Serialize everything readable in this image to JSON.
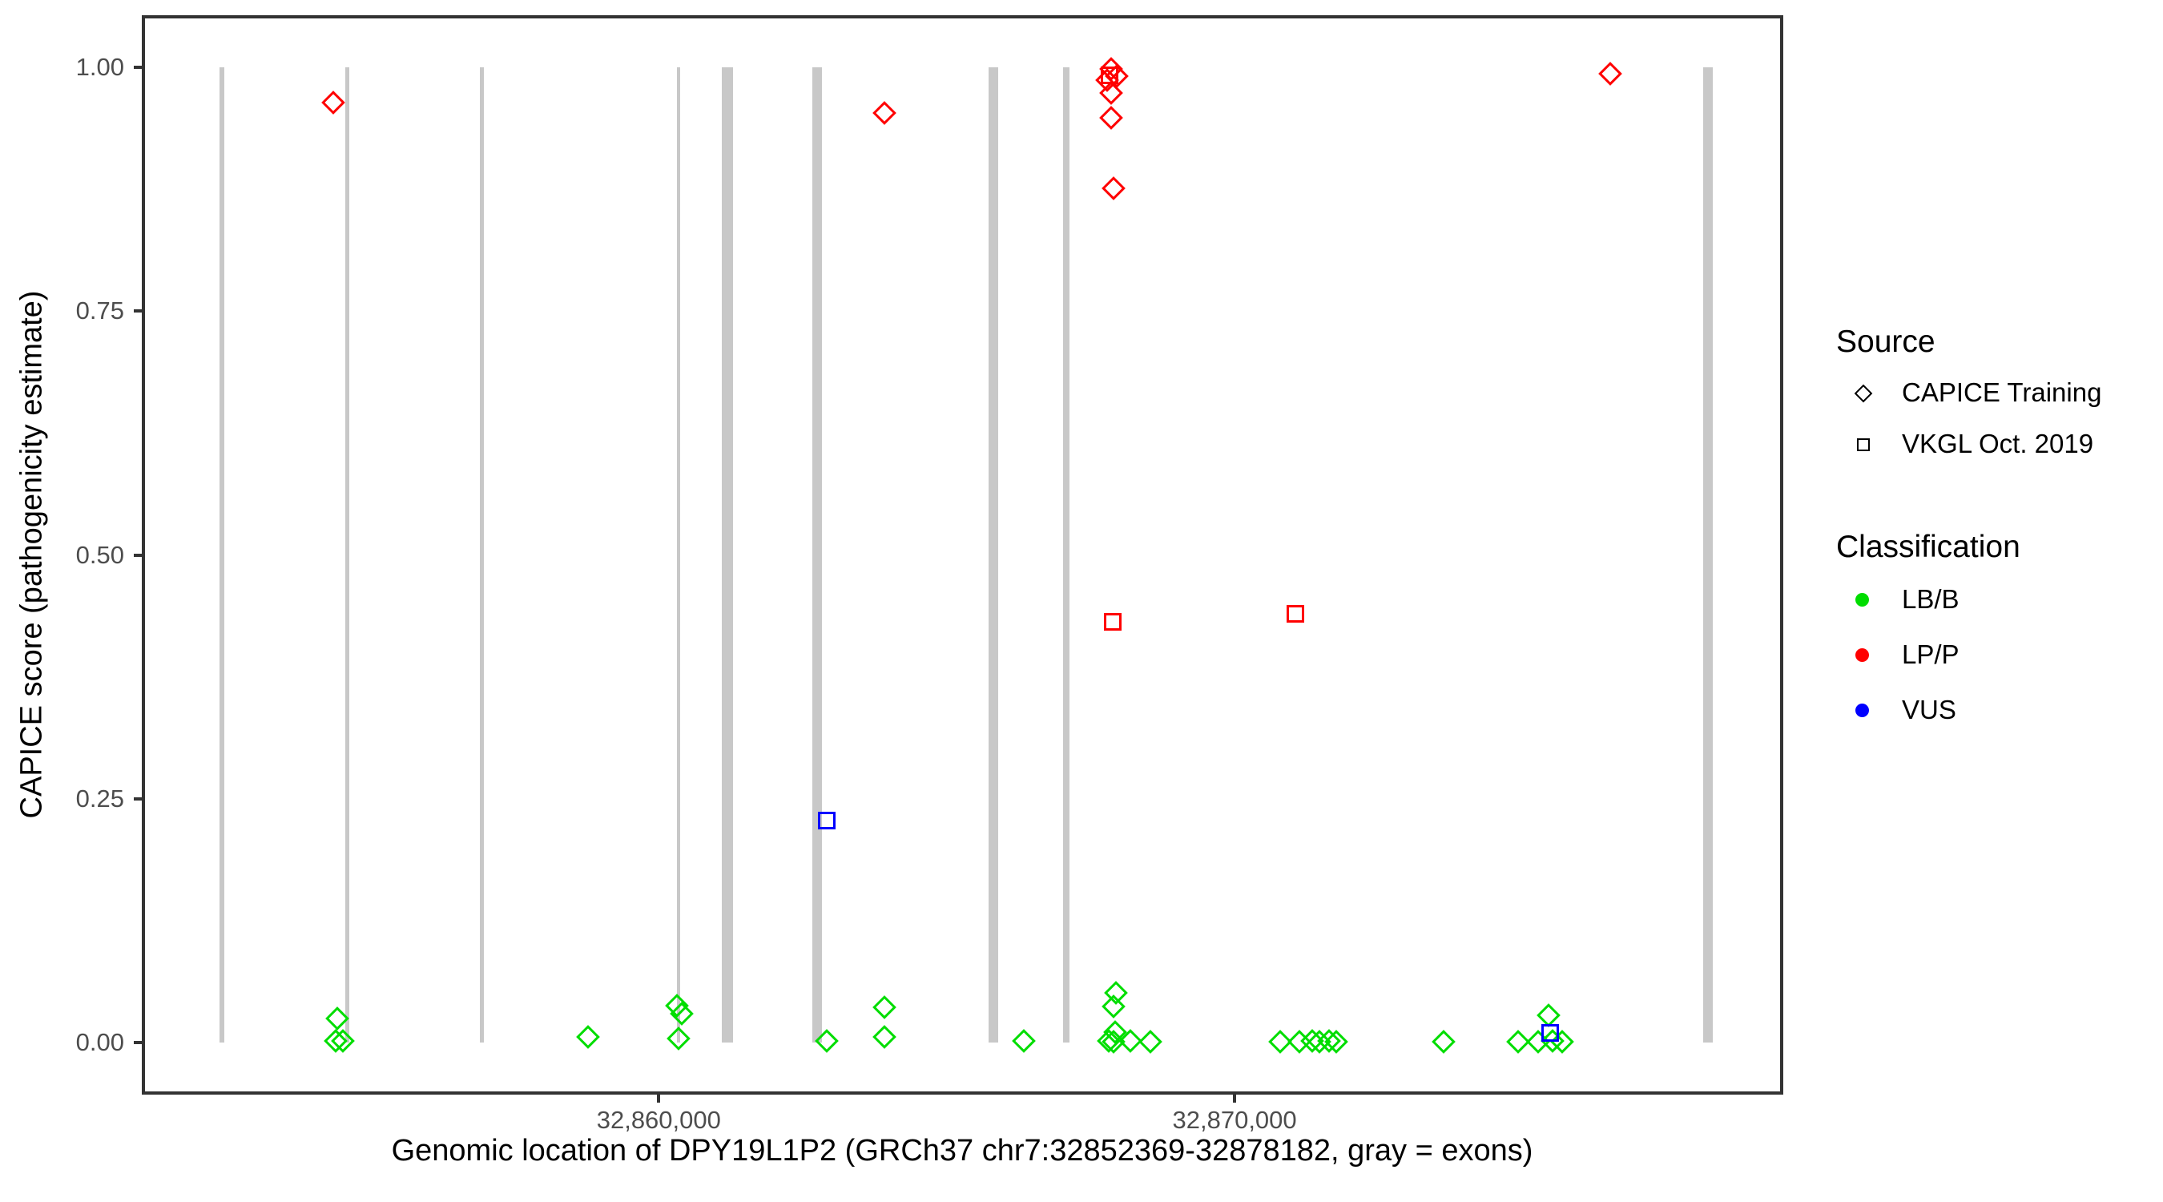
{
  "chart_data": {
    "type": "scatter",
    "title": "",
    "xlabel": "Genomic location of DPY19L1P2 (GRCh37 chr7:32852369-32878182, gray = exons)",
    "ylabel": "CAPICE score (pathogenicity estimate)",
    "xlim": [
      32851078,
      32879473
    ],
    "ylim": [
      -0.05,
      1.05
    ],
    "grid": false,
    "x_ticks": [
      {
        "value": 32860000,
        "label": "32,860,000"
      },
      {
        "value": 32870000,
        "label": "32,870,000"
      }
    ],
    "y_ticks": [
      {
        "value": 1.0,
        "label": "1.00"
      },
      {
        "value": 0.75,
        "label": "0.75"
      },
      {
        "value": 0.5,
        "label": "0.50"
      },
      {
        "value": 0.25,
        "label": "0.25"
      },
      {
        "value": 0.0,
        "label": "0.00"
      }
    ],
    "gene": {
      "name": "DPY19L1P2",
      "assembly": "GRCh37",
      "region": "chr7:32852369-32878182"
    },
    "exon_color": "#c8c8c8",
    "exons": [
      {
        "start": 32852365,
        "end": 32852462
      },
      {
        "start": 32854563,
        "end": 32854632
      },
      {
        "start": 32856900,
        "end": 32856969
      },
      {
        "start": 32860321,
        "end": 32860363
      },
      {
        "start": 32861093,
        "end": 32861288
      },
      {
        "start": 32862665,
        "end": 32862832
      },
      {
        "start": 32865725,
        "end": 32865892
      },
      {
        "start": 32867019,
        "end": 32867130
      },
      {
        "start": 32878135,
        "end": 32878302
      }
    ],
    "classification_colors": {
      "LB/B": "#00dd00",
      "LP/P": "#ff0000",
      "VUS": "#0000ff"
    },
    "series": [
      {
        "name": "CAPICE Training",
        "marker": "diamond",
        "points": [
          {
            "x": 32854347,
            "y": 0.964,
            "class": "LP/P"
          },
          {
            "x": 32863917,
            "y": 0.953,
            "class": "LP/P"
          },
          {
            "x": 32867853,
            "y": 0.998,
            "class": "LP/P"
          },
          {
            "x": 32867950,
            "y": 0.991,
            "class": "LP/P"
          },
          {
            "x": 32867783,
            "y": 0.987,
            "class": "LP/P"
          },
          {
            "x": 32867853,
            "y": 0.974,
            "class": "LP/P"
          },
          {
            "x": 32867853,
            "y": 0.948,
            "class": "LP/P"
          },
          {
            "x": 32867895,
            "y": 0.876,
            "class": "LP/P"
          },
          {
            "x": 32876519,
            "y": 0.993,
            "class": "LP/P"
          },
          {
            "x": 32854417,
            "y": 0.025,
            "class": "LB/B"
          },
          {
            "x": 32854389,
            "y": 0.002,
            "class": "LB/B"
          },
          {
            "x": 32854514,
            "y": 0.002,
            "class": "LB/B"
          },
          {
            "x": 32858770,
            "y": 0.006,
            "class": "LB/B"
          },
          {
            "x": 32860314,
            "y": 0.038,
            "class": "LB/B"
          },
          {
            "x": 32860397,
            "y": 0.03,
            "class": "LB/B"
          },
          {
            "x": 32860342,
            "y": 0.004,
            "class": "LB/B"
          },
          {
            "x": 32862916,
            "y": 0.002,
            "class": "LB/B"
          },
          {
            "x": 32863917,
            "y": 0.036,
            "class": "LB/B"
          },
          {
            "x": 32863917,
            "y": 0.006,
            "class": "LB/B"
          },
          {
            "x": 32866337,
            "y": 0.002,
            "class": "LB/B"
          },
          {
            "x": 32867937,
            "y": 0.051,
            "class": "LB/B"
          },
          {
            "x": 32867895,
            "y": 0.037,
            "class": "LB/B"
          },
          {
            "x": 32867923,
            "y": 0.011,
            "class": "LB/B"
          },
          {
            "x": 32867811,
            "y": 0.002,
            "class": "LB/B"
          },
          {
            "x": 32867895,
            "y": 0.001,
            "class": "LB/B"
          },
          {
            "x": 32868188,
            "y": 0.002,
            "class": "LB/B"
          },
          {
            "x": 32868535,
            "y": 0.001,
            "class": "LB/B"
          },
          {
            "x": 32870789,
            "y": 0.001,
            "class": "LB/B"
          },
          {
            "x": 32871123,
            "y": 0.001,
            "class": "LB/B"
          },
          {
            "x": 32871346,
            "y": 0.002,
            "class": "LB/B"
          },
          {
            "x": 32871471,
            "y": 0.001,
            "class": "LB/B"
          },
          {
            "x": 32871638,
            "y": 0.002,
            "class": "LB/B"
          },
          {
            "x": 32871763,
            "y": 0.001,
            "class": "LB/B"
          },
          {
            "x": 32873627,
            "y": 0.001,
            "class": "LB/B"
          },
          {
            "x": 32874921,
            "y": 0.001,
            "class": "LB/B"
          },
          {
            "x": 32875269,
            "y": 0.001,
            "class": "LB/B"
          },
          {
            "x": 32875519,
            "y": 0.002,
            "class": "LB/B"
          },
          {
            "x": 32875686,
            "y": 0.001,
            "class": "LB/B"
          },
          {
            "x": 32875447,
            "y": 0.028,
            "class": "LB/B"
          }
        ]
      },
      {
        "name": "VKGL Oct. 2019",
        "marker": "square",
        "points": [
          {
            "x": 32867825,
            "y": 0.992,
            "class": "LP/P"
          },
          {
            "x": 32867881,
            "y": 0.431,
            "class": "LP/P"
          },
          {
            "x": 32871053,
            "y": 0.44,
            "class": "LP/P"
          },
          {
            "x": 32862916,
            "y": 0.228,
            "class": "VUS"
          },
          {
            "x": 32875475,
            "y": 0.01,
            "class": "VUS"
          }
        ]
      }
    ]
  },
  "legend": {
    "source": {
      "title": "Source",
      "items": [
        {
          "label": "CAPICE Training",
          "marker": "diamond"
        },
        {
          "label": "VKGL Oct. 2019",
          "marker": "square"
        }
      ]
    },
    "classification": {
      "title": "Classification",
      "items": [
        {
          "label": "LB/B",
          "color": "#00dd00"
        },
        {
          "label": "LP/P",
          "color": "#ff0000"
        },
        {
          "label": "VUS",
          "color": "#0000ff"
        }
      ]
    }
  }
}
